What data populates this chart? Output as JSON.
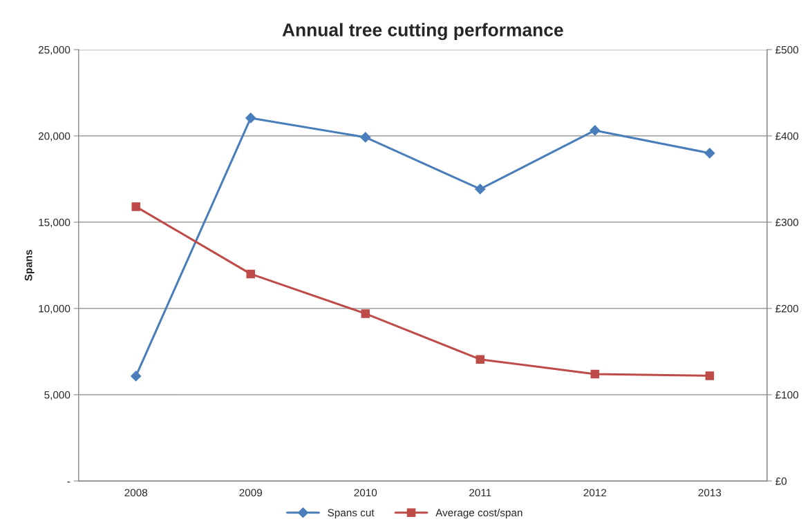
{
  "chart_data": {
    "type": "line",
    "title": "Annual tree cutting performance",
    "ylabel": "Spans",
    "categories": [
      "2008",
      "2009",
      "2010",
      "2011",
      "2012",
      "2013"
    ],
    "series": [
      {
        "name": "Spans cut",
        "color": "#4a7ebb",
        "marker": "diamond",
        "values": [
          6080,
          21040,
          19920,
          16920,
          20320,
          19000
        ]
      },
      {
        "name": "Average cost/span",
        "color": "#be4b48",
        "marker": "square",
        "axis": "y2",
        "values": [
          318,
          240,
          194,
          141,
          124,
          122
        ]
      }
    ],
    "ylim": [
      0,
      25000
    ],
    "yticks": [
      {
        "value": 0,
        "label": "-"
      },
      {
        "value": 5000,
        "label": "5,000"
      },
      {
        "value": 10000,
        "label": "10,000"
      },
      {
        "value": 15000,
        "label": "15,000"
      },
      {
        "value": 20000,
        "label": "20,000"
      },
      {
        "value": 25000,
        "label": "25,000"
      }
    ],
    "y2lim": [
      0,
      500
    ],
    "y2ticks": [
      {
        "value": 0,
        "label": "£0"
      },
      {
        "value": 100,
        "label": "£100"
      },
      {
        "value": 200,
        "label": "£200"
      },
      {
        "value": 300,
        "label": "£300"
      },
      {
        "value": 400,
        "label": "£400"
      },
      {
        "value": 500,
        "label": "£500"
      }
    ],
    "grid": "y",
    "legend": "bottom",
    "line_style": "solid"
  }
}
